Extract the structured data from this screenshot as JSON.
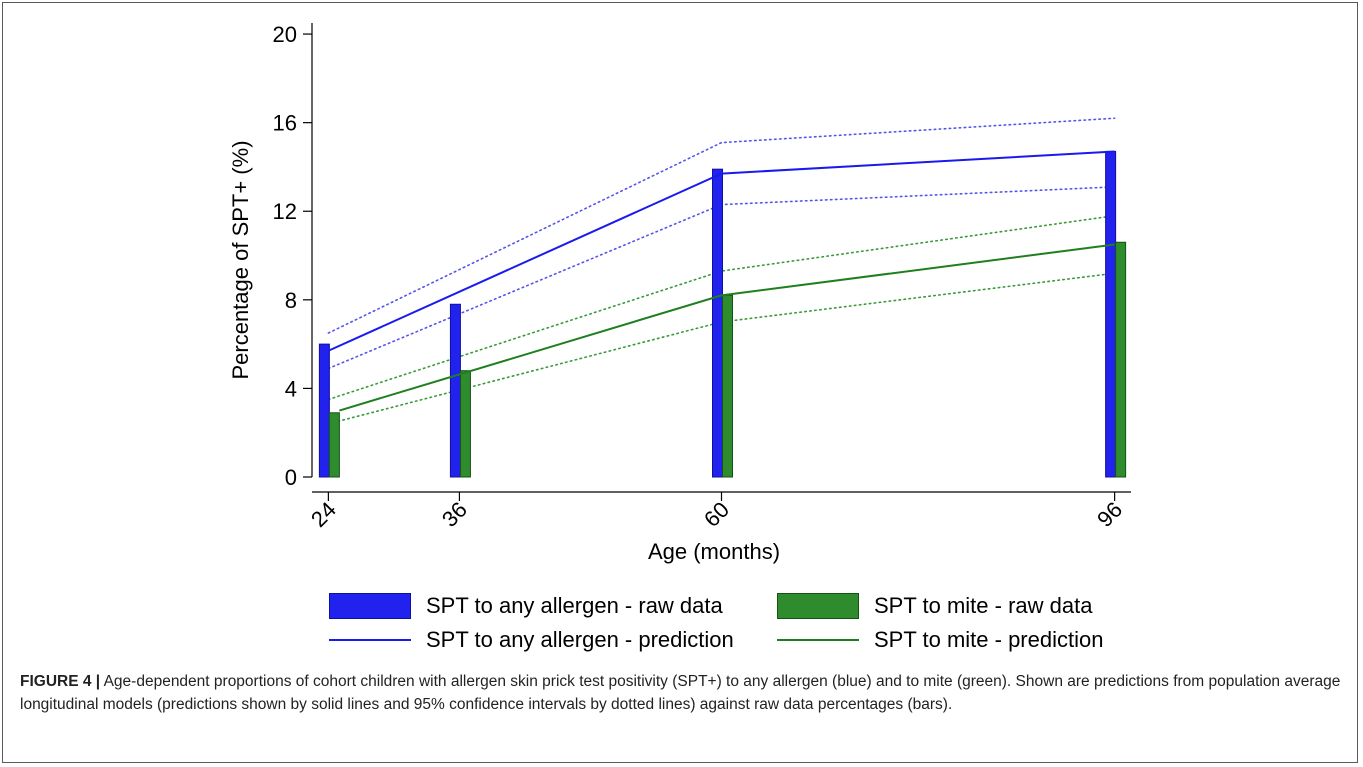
{
  "chart_data": {
    "type": "bar",
    "xlabel": "Age (months)",
    "ylabel": "Percentage of SPT+ (%)",
    "ylim": [
      0,
      20.5
    ],
    "yticks": [
      0,
      4,
      8,
      12,
      16,
      20
    ],
    "xlim": [
      22.5,
      97.5
    ],
    "xticks": [
      24,
      36,
      60,
      96
    ],
    "grid": false,
    "legend_position": "bottom",
    "bar_series": [
      {
        "name": "SPT to any allergen - raw data",
        "color": "#2222ee",
        "border": "#1010a0",
        "x": [
          24,
          36,
          60,
          96
        ],
        "values": [
          6.0,
          7.8,
          13.9,
          14.7
        ]
      },
      {
        "name": "SPT to mite - raw data",
        "color": "#2e8b2e",
        "border": "#145214",
        "x": [
          24,
          36,
          60,
          96
        ],
        "values": [
          2.9,
          4.8,
          8.2,
          10.6
        ]
      }
    ],
    "line_series": [
      {
        "name": "SPT to any allergen - prediction",
        "color": "#1a1aee",
        "style": "solid",
        "x": [
          24,
          60,
          96
        ],
        "values": [
          5.7,
          13.7,
          14.7
        ]
      },
      {
        "name": "SPT to mite - prediction",
        "color": "#1f7f1f",
        "style": "solid",
        "x": [
          24,
          60,
          96
        ],
        "values": [
          3.0,
          8.2,
          10.5
        ]
      }
    ],
    "ci_series": [
      {
        "color": "#5555ee",
        "style": "dotted",
        "x": [
          24,
          60,
          96
        ],
        "values": [
          6.5,
          15.1,
          16.2
        ]
      },
      {
        "color": "#5555ee",
        "style": "dotted",
        "x": [
          24,
          60,
          96
        ],
        "values": [
          4.9,
          12.3,
          13.1
        ]
      },
      {
        "color": "#3a9a3a",
        "style": "dotted",
        "x": [
          24,
          60,
          96
        ],
        "values": [
          3.5,
          9.3,
          11.8
        ]
      },
      {
        "color": "#3a9a3a",
        "style": "dotted",
        "x": [
          24,
          60,
          96
        ],
        "values": [
          2.4,
          7.0,
          9.2
        ]
      }
    ]
  },
  "caption": {
    "label": "FIGURE 4 |",
    "text": " Age-dependent proportions of cohort children with allergen skin prick test positivity (SPT+) to any allergen (blue) and to mite (green). Shown are predictions from population average longitudinal models (predictions shown by solid lines and 95% confidence intervals by dotted lines) against raw data percentages (bars)."
  }
}
